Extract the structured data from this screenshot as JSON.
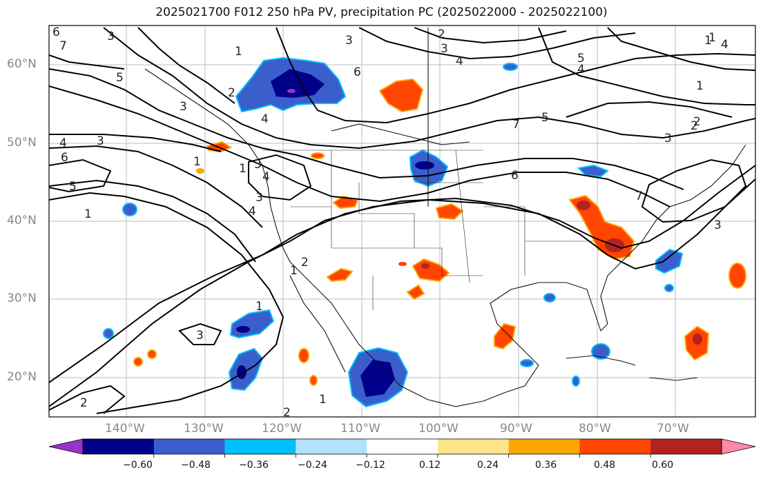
{
  "title": "2025021700 F012 250 hPa PV, precipitation PC (2025022000 - 2025022100)",
  "lat_labels": [
    "60°N",
    "50°N",
    "40°N",
    "30°N",
    "20°N"
  ],
  "lon_labels": [
    "140°W",
    "130°W",
    "120°W",
    "110°W",
    "100°W",
    "90°W",
    "80°W",
    "70°W"
  ],
  "colorbar": {
    "ticks": [
      "−0.60",
      "−0.48",
      "−0.36",
      "−0.24",
      "−0.12",
      "0.12",
      "0.24",
      "0.36",
      "0.48",
      "0.60"
    ],
    "colors": [
      "#9932cc",
      "#00008b",
      "#3a5fcd",
      "#00bfff",
      "#b0e2ff",
      "#ffffff",
      "#ffe58a",
      "#ffa500",
      "#ff4500",
      "#b22222",
      "#ff88aa"
    ]
  },
  "contour_labels": [
    "6",
    "7",
    "5",
    "4",
    "3",
    "1",
    "5",
    "4",
    "3",
    "2",
    "1",
    "1",
    "4",
    "5",
    "4",
    "3",
    "1",
    "2",
    "3",
    "4",
    "6",
    "7",
    "3",
    "3",
    "4",
    "3",
    "2",
    "6",
    "5",
    "1",
    "7",
    "3",
    "4",
    "2",
    "1",
    "3",
    "2",
    "1",
    "6",
    "1",
    "2",
    "3",
    "1",
    "2",
    "1"
  ]
}
